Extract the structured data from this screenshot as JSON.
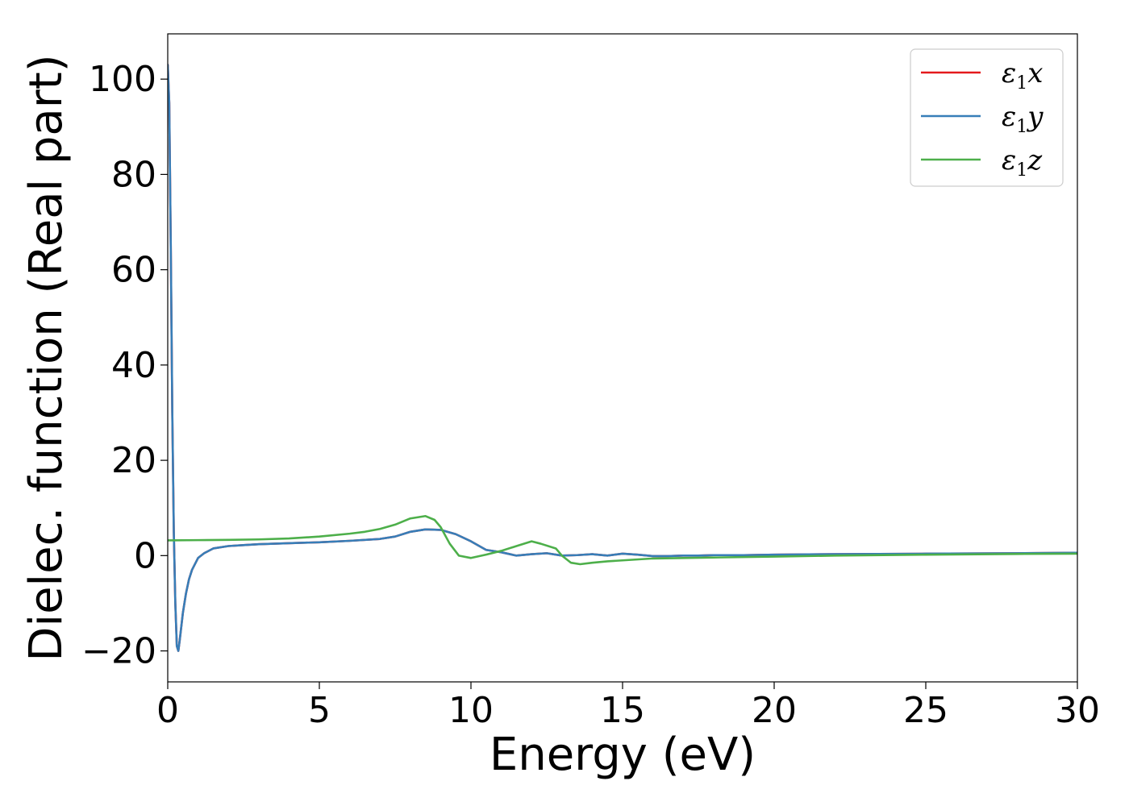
{
  "chart_data": {
    "type": "line",
    "xlabel": "Energy (eV)",
    "ylabel": "Dielec. function (Real part)",
    "xlim": [
      0,
      30
    ],
    "ylim": [
      -26.5,
      109.5
    ],
    "xticks": [
      0,
      5,
      10,
      15,
      20,
      25,
      30
    ],
    "yticks": [
      -20,
      0,
      20,
      40,
      60,
      80,
      100
    ],
    "xtick_labels": [
      "0",
      "5",
      "10",
      "15",
      "20",
      "25",
      "30"
    ],
    "ytick_labels": [
      "−20",
      "0",
      "20",
      "40",
      "60",
      "80",
      "100"
    ],
    "grid": false,
    "legend_position": "top-right",
    "series": [
      {
        "name": "ε1x",
        "legend_main": "ε",
        "legend_sub": "1",
        "legend_var": "x",
        "color": "#e41a1c",
        "x": [
          0,
          0.05,
          0.1,
          0.15,
          0.2,
          0.25,
          0.3,
          0.35,
          0.4,
          0.5,
          0.6,
          0.7,
          0.8,
          1.0,
          1.2,
          1.5,
          2.0,
          2.5,
          3,
          4,
          5,
          6,
          7,
          7.5,
          8,
          8.5,
          9,
          9.5,
          10,
          10.5,
          11,
          11.5,
          12,
          12.5,
          13,
          13.5,
          14,
          14.5,
          15,
          15.5,
          16,
          16.5,
          17,
          17.5,
          18,
          19,
          20,
          22,
          25,
          28,
          30
        ],
        "y": [
          103,
          95,
          65,
          30,
          5,
          -10,
          -19,
          -20,
          -17.5,
          -12,
          -8,
          -5,
          -3,
          -0.5,
          0.5,
          1.5,
          2,
          2.2,
          2.4,
          2.6,
          2.8,
          3.1,
          3.5,
          4,
          5,
          5.5,
          5.4,
          4.5,
          3,
          1.2,
          0.7,
          0,
          0.3,
          0.5,
          0,
          0.1,
          0.3,
          0,
          0.4,
          0.2,
          -0.1,
          -0.1,
          0,
          0,
          0.1,
          0.1,
          0.2,
          0.3,
          0.4,
          0.5,
          0.6
        ]
      },
      {
        "name": "ε1y",
        "legend_main": "ε",
        "legend_sub": "1",
        "legend_var": "y",
        "color": "#377eb8",
        "x": [
          0,
          0.05,
          0.1,
          0.15,
          0.2,
          0.25,
          0.3,
          0.35,
          0.4,
          0.5,
          0.6,
          0.7,
          0.8,
          1.0,
          1.2,
          1.5,
          2.0,
          2.5,
          3,
          4,
          5,
          6,
          7,
          7.5,
          8,
          8.5,
          9,
          9.5,
          10,
          10.5,
          11,
          11.5,
          12,
          12.5,
          13,
          13.5,
          14,
          14.5,
          15,
          15.5,
          16,
          16.5,
          17,
          17.5,
          18,
          19,
          20,
          22,
          25,
          28,
          30
        ],
        "y": [
          103,
          95,
          65,
          30,
          5,
          -10,
          -19,
          -20,
          -17.5,
          -12,
          -8,
          -5,
          -3,
          -0.5,
          0.5,
          1.5,
          2,
          2.2,
          2.4,
          2.6,
          2.8,
          3.1,
          3.5,
          4,
          5,
          5.5,
          5.4,
          4.5,
          3,
          1.2,
          0.7,
          0,
          0.3,
          0.5,
          0,
          0.1,
          0.3,
          0,
          0.4,
          0.2,
          -0.1,
          -0.1,
          0,
          0,
          0.1,
          0.1,
          0.2,
          0.3,
          0.4,
          0.5,
          0.6
        ]
      },
      {
        "name": "ε1z",
        "legend_main": "ε",
        "legend_sub": "1",
        "legend_var": "z",
        "color": "#4daf4a",
        "x": [
          0,
          1,
          2,
          3,
          4,
          5,
          6,
          6.5,
          7,
          7.5,
          8,
          8.5,
          8.8,
          9,
          9.3,
          9.6,
          10,
          10.5,
          11,
          11.5,
          12,
          12.3,
          12.8,
          13,
          13.3,
          13.6,
          14,
          14.5,
          15,
          16,
          17,
          18,
          20,
          22,
          25,
          28,
          30
        ],
        "y": [
          3.2,
          3.25,
          3.3,
          3.4,
          3.6,
          4,
          4.6,
          5,
          5.6,
          6.5,
          7.8,
          8.3,
          7.5,
          6,
          2.5,
          0,
          -0.5,
          0.2,
          1,
          2,
          3,
          2.5,
          1.5,
          0,
          -1.5,
          -1.8,
          -1.5,
          -1.2,
          -1,
          -0.6,
          -0.5,
          -0.4,
          -0.2,
          0,
          0.2,
          0.35,
          0.4
        ]
      }
    ]
  }
}
